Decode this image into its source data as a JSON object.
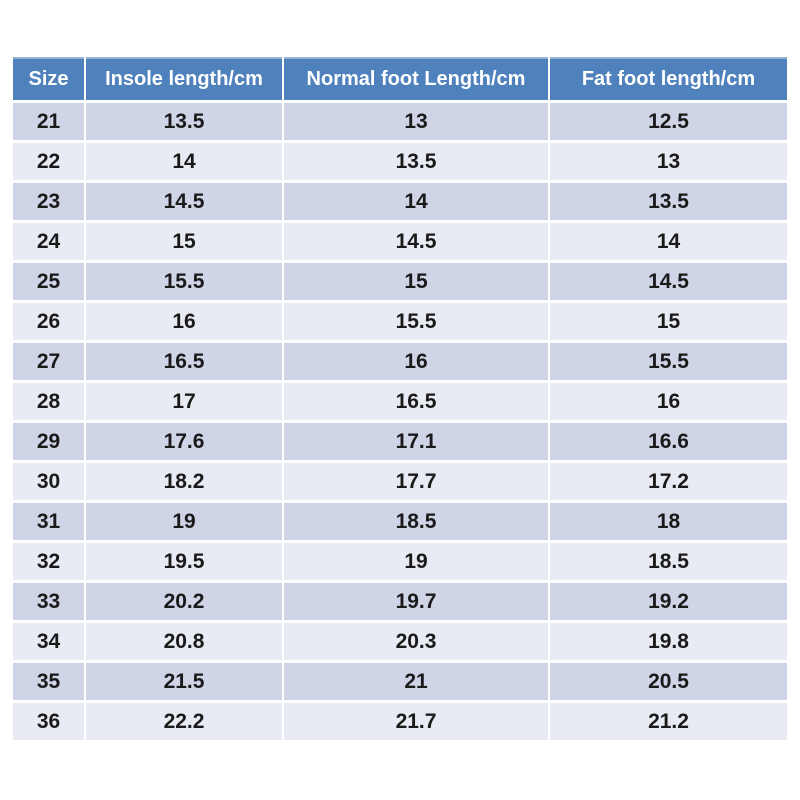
{
  "chart_data": {
    "type": "table",
    "columns": [
      "Size",
      "Insole length/cm",
      "Normal foot Length/cm",
      "Fat foot length/cm"
    ],
    "rows": [
      [
        "21",
        "13.5",
        "13",
        "12.5"
      ],
      [
        "22",
        "14",
        "13.5",
        "13"
      ],
      [
        "23",
        "14.5",
        "14",
        "13.5"
      ],
      [
        "24",
        "15",
        "14.5",
        "14"
      ],
      [
        "25",
        "15.5",
        "15",
        "14.5"
      ],
      [
        "26",
        "16",
        "15.5",
        "15"
      ],
      [
        "27",
        "16.5",
        "16",
        "15.5"
      ],
      [
        "28",
        "17",
        "16.5",
        "16"
      ],
      [
        "29",
        "17.6",
        "17.1",
        "16.6"
      ],
      [
        "30",
        "18.2",
        "17.7",
        "17.2"
      ],
      [
        "31",
        "19",
        "18.5",
        "18"
      ],
      [
        "32",
        "19.5",
        "19",
        "18.5"
      ],
      [
        "33",
        "20.2",
        "19.7",
        "19.2"
      ],
      [
        "34",
        "20.8",
        "20.3",
        "19.8"
      ],
      [
        "35",
        "21.5",
        "21",
        "20.5"
      ],
      [
        "36",
        "22.2",
        "21.7",
        "21.2"
      ]
    ],
    "layout": {
      "banded_rows": true,
      "grid": "white 2-3px separators between cells",
      "header_position": "top"
    }
  },
  "colors": {
    "header_bg": "#4f81bd",
    "header_top_border": "#95b3d7",
    "header_text": "#ffffff",
    "row_odd": "#cfd5e7",
    "row_even": "#e9ebf4",
    "cell_text": "#1a1a1a",
    "separator": "#ffffff",
    "page_bg": "#ffffff"
  }
}
